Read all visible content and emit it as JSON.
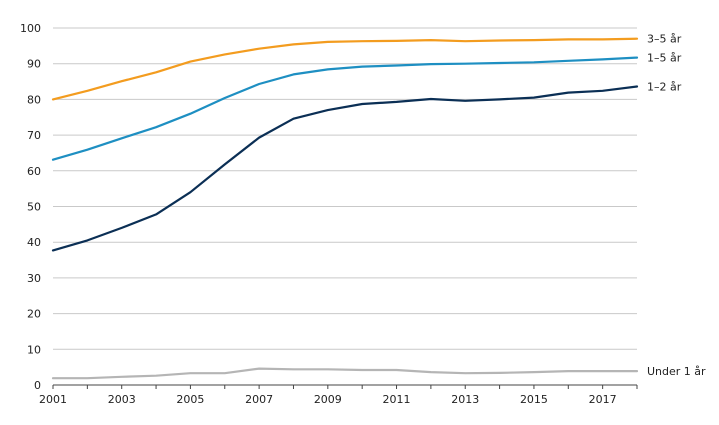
{
  "chart_data": {
    "type": "line",
    "title": "",
    "xlabel": "",
    "ylabel": "",
    "x": [
      2001,
      2002,
      2003,
      2004,
      2005,
      2006,
      2007,
      2008,
      2009,
      2010,
      2011,
      2012,
      2013,
      2014,
      2015,
      2016,
      2017,
      2018
    ],
    "xlim": [
      2001,
      2018
    ],
    "ylim": [
      0,
      100
    ],
    "x_ticks": [
      2001,
      2003,
      2005,
      2007,
      2009,
      2011,
      2013,
      2015,
      2017
    ],
    "y_ticks": [
      0,
      10,
      20,
      30,
      40,
      50,
      60,
      70,
      80,
      90,
      100
    ],
    "x_tick_labels": [
      "2001",
      "2003",
      "2005",
      "2007",
      "2009",
      "2011",
      "2013",
      "2015",
      "2017"
    ],
    "y_tick_labels": [
      "0",
      "10",
      "20",
      "30",
      "40",
      "50",
      "60",
      "70",
      "80",
      "90",
      "100"
    ],
    "grid": "horizontal",
    "legend": "end-of-line labels",
    "series": [
      {
        "name": "3–5 år",
        "color": "#f39c1f",
        "values": [
          80.0,
          82.4,
          85.1,
          87.6,
          90.6,
          92.6,
          94.2,
          95.4,
          96.1,
          96.3,
          96.4,
          96.6,
          96.3,
          96.5,
          96.6,
          96.8,
          96.8,
          97.0
        ]
      },
      {
        "name": "1–5 år",
        "color": "#1e8fc2",
        "values": [
          63.1,
          65.9,
          69.1,
          72.2,
          76.0,
          80.4,
          84.3,
          87.0,
          88.4,
          89.2,
          89.5,
          89.9,
          90.0,
          90.2,
          90.4,
          90.8,
          91.2,
          91.7
        ]
      },
      {
        "name": "1–2 år",
        "color": "#0b2f55",
        "values": [
          37.7,
          40.5,
          44.0,
          47.8,
          54.0,
          61.8,
          69.3,
          74.6,
          77.0,
          78.7,
          79.3,
          80.1,
          79.6,
          80.0,
          80.5,
          81.9,
          82.4,
          83.6
        ]
      },
      {
        "name": "Under 1 år",
        "color": "#b5b5b5",
        "values": [
          1.9,
          1.9,
          2.3,
          2.6,
          3.3,
          3.3,
          4.6,
          4.4,
          4.4,
          4.2,
          4.2,
          3.6,
          3.3,
          3.4,
          3.6,
          3.9,
          3.9,
          3.9
        ]
      }
    ]
  }
}
